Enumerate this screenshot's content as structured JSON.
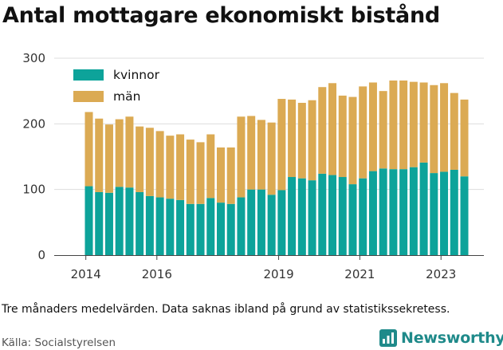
{
  "title": "Antal mottagare ekonomiskt bistånd",
  "note": "Tre månaders medelvärden. Data saknas ibland på grund av statistikssekretess.",
  "source": "Källa: Socialstyrelsen",
  "brand": "Newsworthy",
  "chart_data": {
    "type": "bar",
    "stacked": true,
    "ylim": [
      0,
      300
    ],
    "yticks": [
      0,
      100,
      200,
      300
    ],
    "xticks": [
      {
        "label": "2014",
        "index": -0.3
      },
      {
        "label": "2016",
        "index": 6.7
      },
      {
        "label": "2019",
        "index": 18.7
      },
      {
        "label": "2021",
        "index": 26.7
      },
      {
        "label": "2023",
        "index": 34.7
      }
    ],
    "grid": true,
    "legend": "top-left",
    "colors": {
      "kvinnor": "#0da39a",
      "man": "#dbaa53"
    },
    "series": [
      {
        "name": "kvinnor",
        "values": [
          105,
          96,
          95,
          104,
          103,
          96,
          90,
          88,
          86,
          84,
          78,
          78,
          87,
          80,
          78,
          88,
          100,
          100,
          92,
          99,
          119,
          117,
          114,
          124,
          122,
          119,
          108,
          117,
          128,
          132,
          131,
          131,
          134,
          141,
          125,
          127,
          130,
          120
        ]
      },
      {
        "name": "män",
        "values": [
          113,
          112,
          104,
          103,
          108,
          100,
          104,
          101,
          96,
          100,
          98,
          94,
          97,
          84,
          86,
          123,
          112,
          106,
          110,
          139,
          118,
          115,
          122,
          132,
          140,
          124,
          133,
          140,
          135,
          118,
          135,
          135,
          130,
          122,
          134,
          135,
          117,
          117
        ]
      }
    ]
  }
}
